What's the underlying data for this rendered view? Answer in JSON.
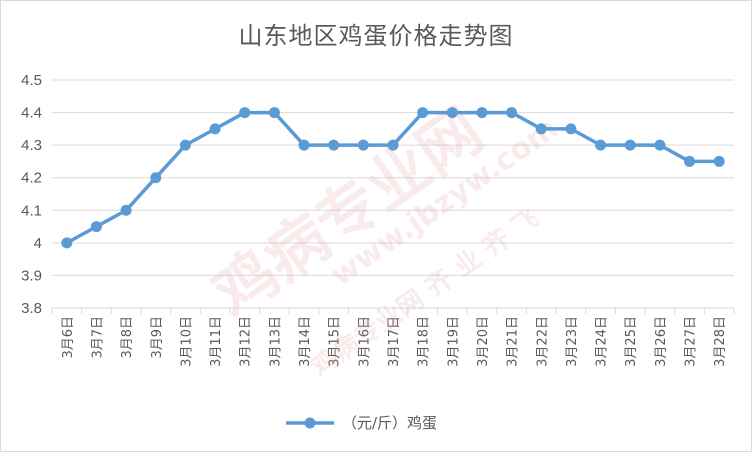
{
  "chart_data": {
    "type": "line",
    "title": "山东地区鸡蛋价格走势图",
    "categories": [
      "3月6日",
      "3月7日",
      "3月8日",
      "3月9日",
      "3月10日",
      "3月11日",
      "3月12日",
      "3月13日",
      "3月14日",
      "3月15日",
      "3月16日",
      "3月17日",
      "3月18日",
      "3月19日",
      "3月20日",
      "3月21日",
      "3月22日",
      "3月23日",
      "3月24日",
      "3月25日",
      "3月26日",
      "3月27日",
      "3月28日"
    ],
    "series": [
      {
        "name": "（元/斤）鸡蛋",
        "values": [
          4.0,
          4.05,
          4.1,
          4.2,
          4.3,
          4.35,
          4.4,
          4.4,
          4.3,
          4.3,
          4.3,
          4.3,
          4.4,
          4.4,
          4.4,
          4.4,
          4.35,
          4.35,
          4.3,
          4.3,
          4.3,
          4.25,
          4.25
        ]
      }
    ],
    "ylim": [
      3.8,
      4.5
    ],
    "yticks": [
      "4.5",
      "4.4",
      "4.3",
      "4.2",
      "4.1",
      "4",
      "3.9",
      "3.8"
    ],
    "grid": "horizontal",
    "legend": "bottom",
    "colors": {
      "series": "#5b9bd5",
      "grid": "#d9d9d9",
      "text": "#595959"
    }
  },
  "watermark": {
    "main": "鸡病专业网",
    "url": "www.jbzyw.com",
    "slogan": "鸡病专业网 齐 业 齐 飞"
  }
}
